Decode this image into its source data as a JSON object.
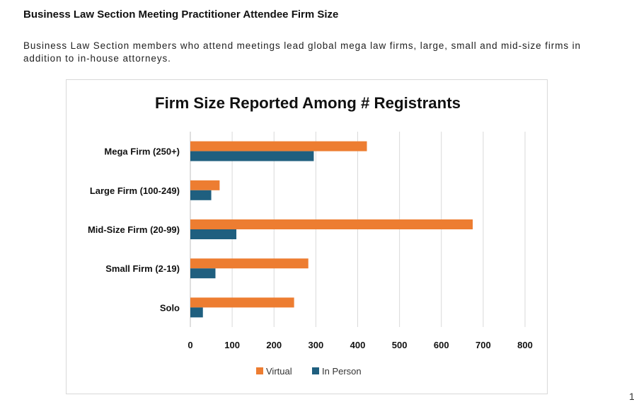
{
  "page": {
    "heading": "Business Law Section Meeting Practitioner Attendee Firm Size",
    "intro": "Business Law Section members who attend meetings lead global mega law firms, large, small and mid-size firms in addition to in-house attorneys.",
    "page_number": "1"
  },
  "chart_data": {
    "type": "bar",
    "orientation": "horizontal",
    "title": "Firm Size Reported Among # Registrants",
    "xlabel": "",
    "ylabel": "",
    "categories": [
      "Mega Firm (250+)",
      "Large Firm (100-249)",
      "Mid-Size Firm (20-99)",
      "Small Firm (2-19)",
      "Solo"
    ],
    "series": [
      {
        "name": "Virtual",
        "color": "#ED7D31",
        "values": [
          422,
          70,
          675,
          282,
          248
        ]
      },
      {
        "name": "In Person",
        "color": "#1F5F7F",
        "values": [
          295,
          50,
          110,
          60,
          30
        ]
      }
    ],
    "xlim": [
      0,
      800
    ],
    "xticks": [
      "0",
      "100",
      "200",
      "300",
      "400",
      "500",
      "600",
      "700",
      "800"
    ],
    "grid": "vertical",
    "legend": "bottom"
  }
}
